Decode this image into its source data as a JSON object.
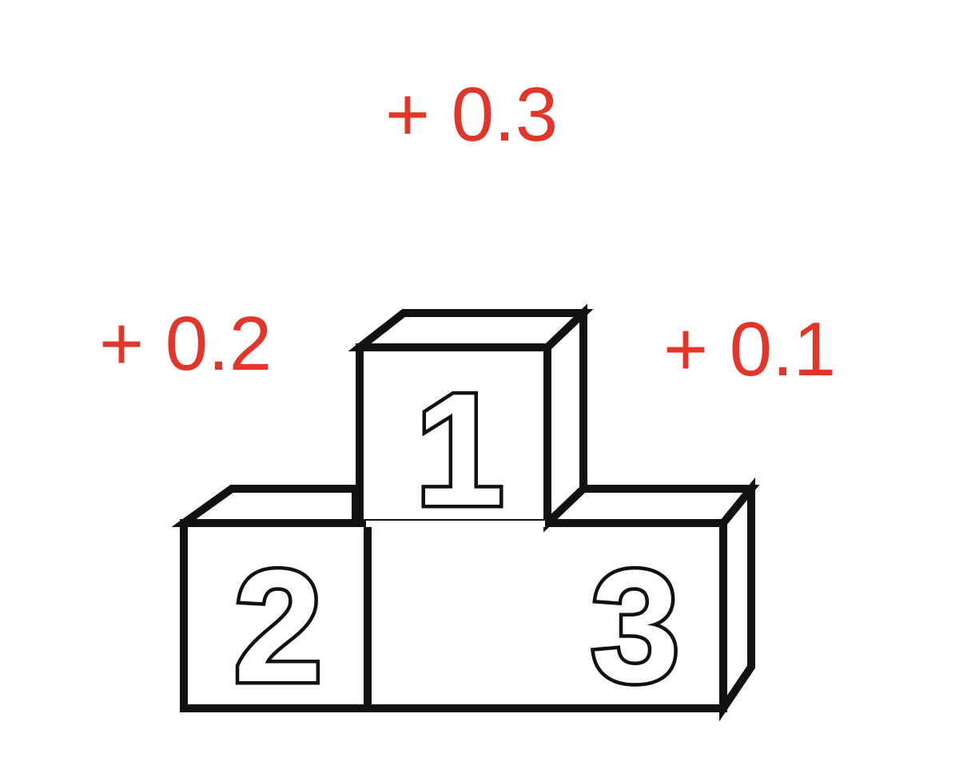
{
  "colors": {
    "score_text": "#e2362b",
    "podium_stroke": "#111111",
    "podium_fill": "#ffffff"
  },
  "podium": {
    "first": {
      "place": "1",
      "bonus": "+ 0.3"
    },
    "second": {
      "place": "2",
      "bonus": "+ 0.2"
    },
    "third": {
      "place": "3",
      "bonus": "+ 0.1"
    }
  }
}
